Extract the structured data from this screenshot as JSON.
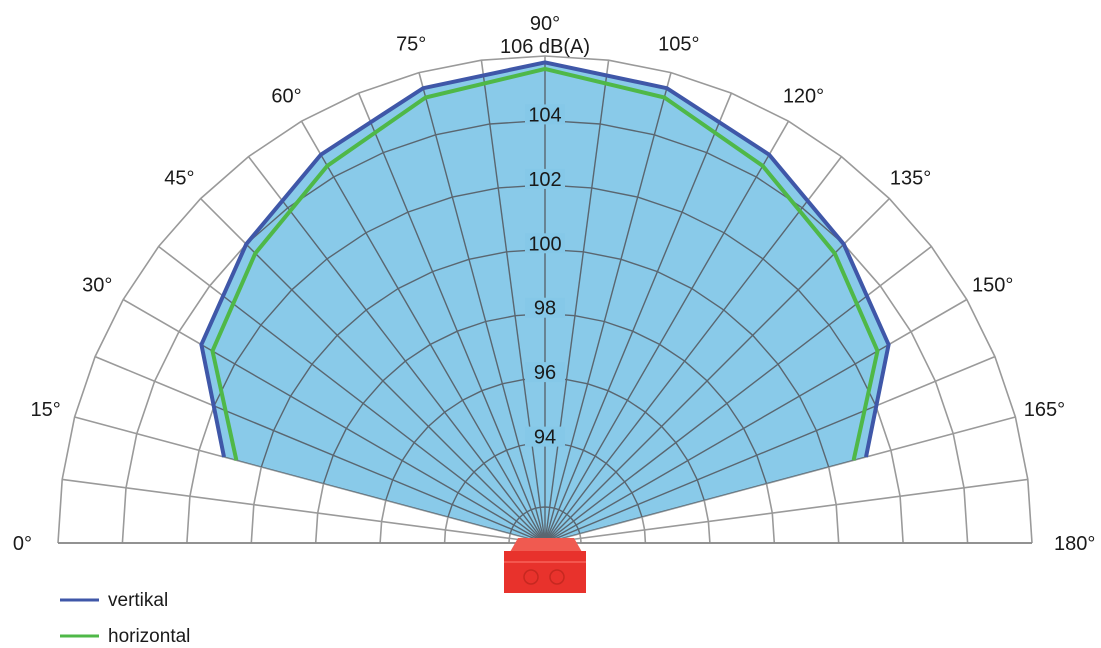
{
  "chart_data": {
    "type": "polar",
    "title": "90°",
    "unit_label": "106 dB(A)",
    "angle_ticks": [
      0,
      15,
      30,
      45,
      60,
      75,
      90,
      105,
      120,
      135,
      150,
      165,
      180
    ],
    "angle_tick_labels": [
      "0°",
      "15°",
      "30°",
      "45°",
      "60°",
      "75°",
      "",
      "105°",
      "120°",
      "135°",
      "150°",
      "165°",
      "180°"
    ],
    "grid_angle_step": 7.5,
    "radial_range": [
      92,
      106
    ],
    "radial_ticks": [
      92,
      94,
      96,
      98,
      100,
      102,
      104,
      106
    ],
    "radial_tick_labels": [
      "94",
      "96",
      "98",
      "100",
      "102",
      "104"
    ],
    "grid": true,
    "legend_position": "bottom-left",
    "series": [
      {
        "name": "vertikal",
        "color": "#3f57a8",
        "angles": [
          15,
          30,
          45,
          60,
          75,
          90,
          105,
          120,
          135,
          150,
          165
        ],
        "values": [
          101.2,
          103.2,
          104.0,
          104.8,
          105.5,
          105.8,
          105.5,
          104.8,
          104.0,
          103.2,
          101.2
        ]
      },
      {
        "name": "horizontal",
        "color": "#4fb848",
        "angles": [
          15,
          30,
          45,
          60,
          75,
          90,
          105,
          120,
          135,
          150,
          165
        ],
        "values": [
          100.8,
          102.8,
          103.6,
          104.4,
          105.2,
          105.6,
          105.2,
          104.4,
          103.6,
          102.8,
          100.8
        ]
      }
    ],
    "fill_color": "#85c8e8"
  },
  "colors": {
    "grid": "#9a9a9a",
    "axis": "#8a8a8a",
    "device_body": "#e8322c",
    "device_top": "#f05a50"
  },
  "device": {
    "icon": "red-sounder-device-icon"
  }
}
